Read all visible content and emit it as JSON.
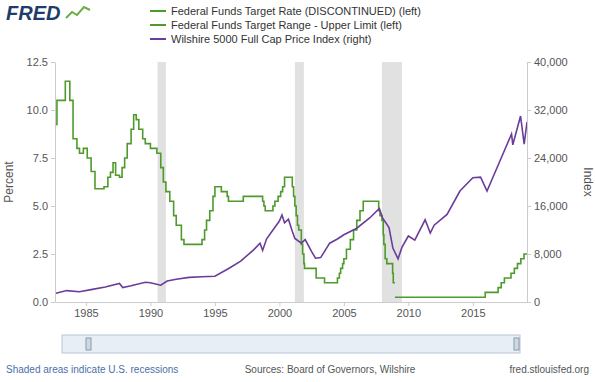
{
  "chart_data": {
    "type": "line",
    "logo": "FRED",
    "y_label": "Percent",
    "y2_label": "Index",
    "note": "Shaded areas indicate U.S. recessions",
    "source": "Sources: Board of Governors, Wilshire",
    "url": "fred.stlouisfed.org",
    "legend": "top",
    "grid": false,
    "xlim": [
      1982.6,
      2019.2
    ],
    "xticks": [
      1985,
      1990,
      1995,
      2000,
      2005,
      2010,
      2015
    ],
    "ylim": [
      0,
      12.5
    ],
    "yticks": [
      {
        "value": 0,
        "label": "0.0"
      },
      2.5,
      {
        "value": 5,
        "label": "5.0"
      },
      7.5,
      {
        "value": 10,
        "label": "10.0"
      },
      12.5
    ],
    "y2lim": [
      0,
      40000
    ],
    "y2ticks": [
      0,
      {
        "value": 8000,
        "label": "8,000"
      },
      {
        "value": 16000,
        "label": "16,000"
      },
      {
        "value": 24000,
        "label": "24,000"
      },
      {
        "value": 32000,
        "label": "32,000"
      },
      {
        "value": 40000,
        "label": "40,000"
      }
    ],
    "recessions": [
      {
        "start": 1990.55,
        "end": 1991.2
      },
      {
        "start": 2001.2,
        "end": 2001.9
      },
      {
        "start": 2007.95,
        "end": 2009.5
      }
    ],
    "series": [
      {
        "name": "Federal Funds Target Rate (DISCONTINUED) (left)",
        "color": "#4f9a2c",
        "line_style": "step",
        "axis": "y",
        "x": [
          1982.6,
          1982.75,
          1983.4,
          1983.75,
          1984.0,
          1984.3,
          1984.5,
          1984.8,
          1985.1,
          1985.4,
          1985.7,
          1986.4,
          1986.7,
          1986.9,
          1987.1,
          1987.3,
          1987.6,
          1987.8,
          1988.0,
          1988.2,
          1988.5,
          1988.7,
          1988.9,
          1989.1,
          1989.4,
          1989.6,
          1990.0,
          1990.5,
          1990.8,
          1991.0,
          1991.2,
          1991.5,
          1991.8,
          1992.0,
          1992.4,
          1992.6,
          1994.0,
          1994.2,
          1994.35,
          1994.6,
          1994.85,
          1995.0,
          1995.5,
          1995.95,
          1996.05,
          1997.2,
          1998.7,
          1998.8,
          1998.9,
          1999.5,
          1999.65,
          1999.9,
          2000.1,
          2000.25,
          2000.4,
          2001.0,
          2001.1,
          2001.2,
          2001.3,
          2001.4,
          2001.5,
          2001.7,
          2001.8,
          2001.9,
          2001.95,
          2002.85,
          2003.5,
          2004.5,
          2004.65,
          2004.75,
          2004.9,
          2005.0,
          2005.2,
          2005.5,
          2005.75,
          2006.0,
          2006.25,
          2006.5,
          2007.7,
          2007.8,
          2007.95,
          2008.05,
          2008.1,
          2008.2,
          2008.33,
          2008.78,
          2008.83,
          2008.96
        ],
        "values": [
          9.25,
          10.5,
          11.5,
          10.5,
          8.5,
          8.0,
          7.75,
          8.0,
          7.5,
          6.8,
          5.9,
          6.0,
          6.5,
          6.75,
          7.25,
          6.6,
          6.5,
          7.0,
          7.5,
          8.25,
          9.0,
          9.75,
          9.5,
          9.0,
          8.5,
          8.25,
          8.0,
          7.75,
          7.0,
          6.25,
          5.75,
          5.25,
          4.5,
          4.0,
          3.25,
          3.0,
          3.25,
          3.75,
          4.25,
          4.75,
          5.5,
          6.0,
          5.75,
          5.5,
          5.25,
          5.5,
          5.25,
          5.0,
          4.75,
          5.0,
          5.25,
          5.5,
          5.75,
          6.0,
          6.5,
          6.0,
          5.5,
          5.0,
          4.5,
          4.0,
          3.75,
          3.0,
          2.5,
          2.0,
          1.75,
          1.25,
          1.0,
          1.25,
          1.5,
          1.75,
          2.0,
          2.25,
          2.75,
          3.25,
          3.75,
          4.25,
          4.75,
          5.25,
          4.75,
          4.5,
          4.25,
          3.5,
          3.0,
          2.25,
          2.0,
          1.5,
          1.0,
          1.0
        ]
      },
      {
        "name": "Federal Funds Target Range - Upper Limit (left)",
        "color": "#4f9a2c",
        "line_style": "step",
        "axis": "y",
        "x": [
          2008.96,
          2015.96,
          2016.96,
          2017.2,
          2017.45,
          2017.96,
          2018.22,
          2018.46,
          2018.72,
          2018.97,
          2019.2
        ],
        "values": [
          0.25,
          0.5,
          0.75,
          1.0,
          1.25,
          1.5,
          1.75,
          2.0,
          2.25,
          2.5,
          2.5
        ]
      },
      {
        "name": "Wilshire 5000 Full Cap Price Index (right)",
        "color": "#6a3d9a",
        "line_style": "solid",
        "axis": "y2",
        "x": [
          1982.6,
          1983.5,
          1984.5,
          1985.5,
          1986.5,
          1987.6,
          1987.85,
          1988.5,
          1989.6,
          1990.0,
          1990.8,
          1991.3,
          1992.0,
          1993.0,
          1994.0,
          1995.0,
          1996.0,
          1997.0,
          1998.0,
          1998.5,
          1998.7,
          1999.0,
          1999.5,
          2000.0,
          2000.2,
          2000.4,
          2000.7,
          2001.0,
          2001.2,
          2001.7,
          2002.0,
          2002.5,
          2002.8,
          2003.2,
          2003.9,
          2004.5,
          2005.0,
          2006.0,
          2007.0,
          2007.75,
          2008.0,
          2008.5,
          2008.8,
          2009.2,
          2009.5,
          2010.0,
          2010.5,
          2011.3,
          2011.7,
          2012.0,
          2013.0,
          2014.0,
          2015.0,
          2015.6,
          2016.1,
          2016.5,
          2017.0,
          2018.0,
          2018.1,
          2018.7,
          2018.98,
          2019.2
        ],
        "values": [
          1400,
          1900,
          1700,
          2100,
          2500,
          3100,
          2400,
          2700,
          3300,
          3200,
          2800,
          3500,
          3800,
          4100,
          4200,
          4300,
          5500,
          6800,
          8700,
          9800,
          8600,
          10500,
          12000,
          13500,
          14500,
          13200,
          13800,
          11800,
          10600,
          9800,
          10400,
          8400,
          7300,
          7400,
          9800,
          10500,
          11200,
          12300,
          14000,
          15600,
          14000,
          12400,
          9000,
          7200,
          9100,
          11000,
          10300,
          13700,
          11500,
          12800,
          14600,
          18500,
          20700,
          20800,
          18500,
          20500,
          23000,
          28000,
          26200,
          31000,
          26300,
          30000
        ]
      }
    ]
  }
}
